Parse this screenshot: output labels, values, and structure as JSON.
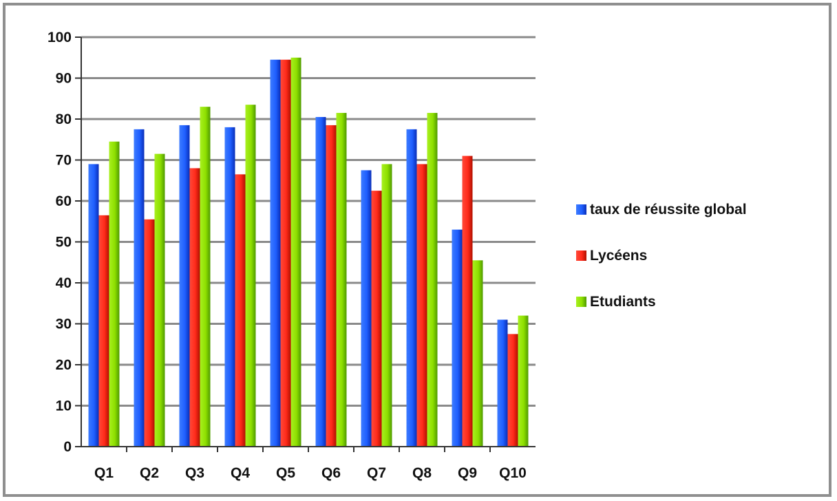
{
  "chart_data": {
    "type": "bar",
    "title": "",
    "xlabel": "",
    "ylabel": "",
    "categories": [
      "Q1",
      "Q2",
      "Q3",
      "Q4",
      "Q5",
      "Q6",
      "Q7",
      "Q8",
      "Q9",
      "Q10"
    ],
    "ylim": [
      0,
      100
    ],
    "yticks": [
      0,
      10,
      20,
      30,
      40,
      50,
      60,
      70,
      80,
      90,
      100
    ],
    "grid": true,
    "legend_position": "right",
    "series": [
      {
        "name": "taux de réussite global",
        "color": "#1f5fff",
        "values": [
          69,
          77.5,
          78.5,
          78,
          94.5,
          80.5,
          67.5,
          77.5,
          53,
          31
        ]
      },
      {
        "name": "Lycéens",
        "color": "#ff2a1a",
        "values": [
          56.5,
          55.5,
          68,
          66.5,
          94.5,
          78.5,
          62.5,
          69,
          71,
          27.5
        ]
      },
      {
        "name": "Etudiants",
        "color": "#8ee000",
        "values": [
          74.5,
          71.5,
          83,
          83.5,
          95,
          81.5,
          69,
          81.5,
          45.5,
          32
        ]
      }
    ]
  }
}
